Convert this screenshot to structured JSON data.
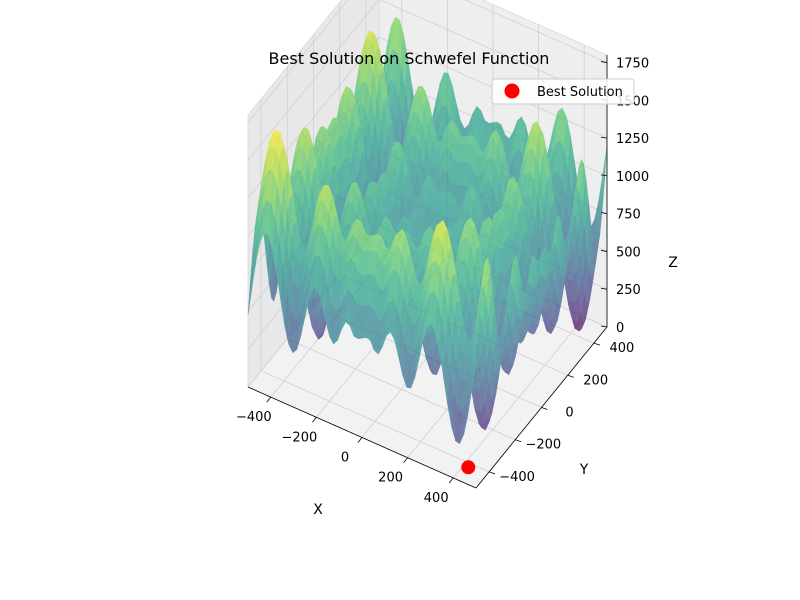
{
  "chart_data": {
    "type": "surface3d",
    "title": "Best Solution on Schwefel Function",
    "xlabel": "X",
    "ylabel": "Y",
    "zlabel": "Z",
    "xlim": [
      -500,
      500
    ],
    "ylim": [
      -500,
      500
    ],
    "zlim": [
      0,
      1800
    ],
    "xticks": [
      -400,
      -200,
      0,
      200,
      400
    ],
    "yticks": [
      -400,
      -200,
      0,
      200,
      400
    ],
    "zticks": [
      0,
      250,
      500,
      750,
      1000,
      1250,
      1500,
      1750
    ],
    "xtick_labels": [
      "−400",
      "−200",
      "0",
      "200",
      "400"
    ],
    "ytick_labels": [
      "−400",
      "−200",
      "0",
      "200",
      "400"
    ],
    "ztick_labels": [
      "0",
      "250",
      "500",
      "750",
      "1000",
      "1250",
      "1500",
      "1750"
    ],
    "surface": {
      "function": "schwefel",
      "colormap": "viridis",
      "alpha": 0.7
    },
    "series": [
      {
        "name": "Best Solution",
        "type": "scatter",
        "color": "#ff0000",
        "x": [
          421
        ],
        "y": [
          -421
        ],
        "z": [
          0
        ]
      }
    ],
    "legend": {
      "position": "top-right",
      "entries": [
        "Best Solution"
      ]
    },
    "grid": true
  }
}
